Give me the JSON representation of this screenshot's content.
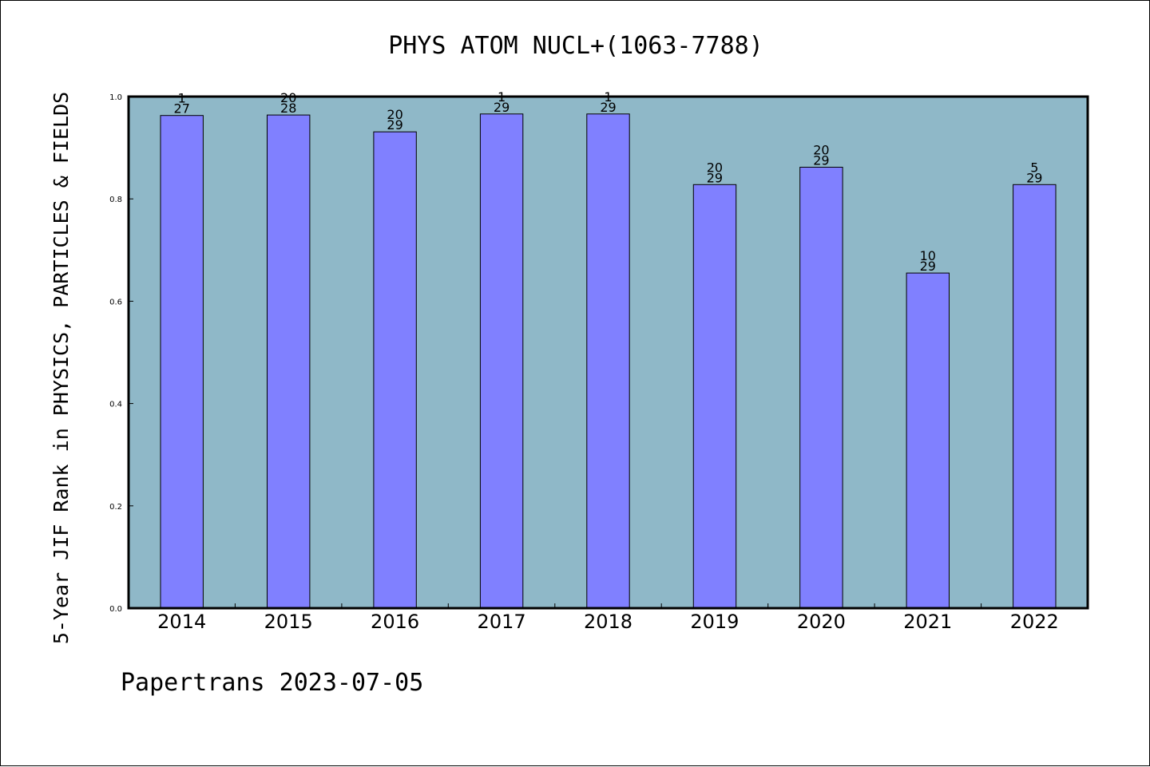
{
  "chart_data": {
    "type": "bar",
    "title": "PHYS ATOM NUCL+(1063-7788)",
    "ylabel": "5-Year JIF Rank in PHYSICS, PARTICLES & FIELDS",
    "xlabel": "",
    "footer": "Papertrans 2023-07-05",
    "categories": [
      "2014",
      "2015",
      "2016",
      "2017",
      "2018",
      "2019",
      "2020",
      "2021",
      "2022"
    ],
    "values": [
      0.963,
      0.964,
      0.931,
      0.966,
      0.966,
      0.828,
      0.862,
      0.655,
      0.828
    ],
    "data_labels": [
      {
        "top": "1",
        "bottom": "27"
      },
      {
        "top": "20",
        "bottom": "28"
      },
      {
        "top": "20",
        "bottom": "29"
      },
      {
        "top": "1",
        "bottom": "29"
      },
      {
        "top": "1",
        "bottom": "29"
      },
      {
        "top": "20",
        "bottom": "29"
      },
      {
        "top": "20",
        "bottom": "29"
      },
      {
        "top": "10",
        "bottom": "29"
      },
      {
        "top": "5",
        "bottom": "29"
      }
    ],
    "ylim": [
      0,
      1.0
    ],
    "yticks": [
      "0.0",
      "0.2",
      "0.4",
      "0.6",
      "0.8",
      "1.0"
    ],
    "grid": false,
    "colors": {
      "plot_background": "#8fb8c8",
      "bar_fill": "#8080ff",
      "bar_edge": "#000000"
    }
  }
}
